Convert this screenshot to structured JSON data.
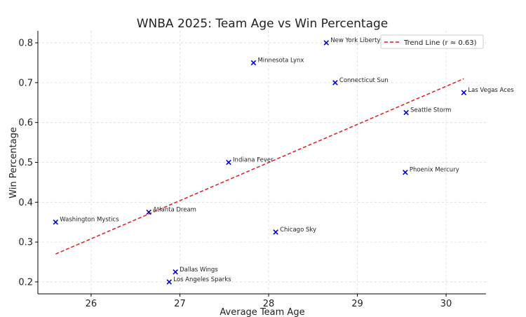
{
  "chart_data": {
    "type": "scatter",
    "title": "WNBA 2025: Team Age vs Win Percentage",
    "xlabel": "Average Team Age",
    "ylabel": "Win Percentage",
    "xlim": [
      25.4,
      30.45
    ],
    "ylim": [
      0.17,
      0.83
    ],
    "xticks": [
      26,
      27,
      28,
      29,
      30
    ],
    "yticks": [
      0.2,
      0.3,
      0.4,
      0.5,
      0.6,
      0.7,
      0.8
    ],
    "xtick_labels": [
      "26",
      "27",
      "28",
      "29",
      "30"
    ],
    "ytick_labels": [
      "0.2",
      "0.3",
      "0.4",
      "0.5",
      "0.6",
      "0.7",
      "0.8"
    ],
    "grid": true,
    "legend_position": "top-right",
    "points": [
      {
        "team": "New York Liberty",
        "x": 28.65,
        "y": 0.8
      },
      {
        "team": "Minnesota Lynx",
        "x": 27.83,
        "y": 0.75
      },
      {
        "team": "Connecticut Sun",
        "x": 28.75,
        "y": 0.7
      },
      {
        "team": "Las Vegas Aces",
        "x": 30.2,
        "y": 0.675
      },
      {
        "team": "Seattle Storm",
        "x": 29.55,
        "y": 0.625
      },
      {
        "team": "Indiana Fever",
        "x": 27.55,
        "y": 0.5
      },
      {
        "team": "Phoenix Mercury",
        "x": 29.54,
        "y": 0.475
      },
      {
        "team": "Atlanta Dream",
        "x": 26.65,
        "y": 0.375
      },
      {
        "team": "Washington Mystics",
        "x": 25.6,
        "y": 0.35
      },
      {
        "team": "Chicago Sky",
        "x": 28.08,
        "y": 0.325
      },
      {
        "team": "Dallas Wings",
        "x": 26.95,
        "y": 0.225
      },
      {
        "team": "Los Angeles Sparks",
        "x": 26.88,
        "y": 0.2
      }
    ],
    "trend_line": {
      "label": "Trend Line (r ≈ 0.63)",
      "x": [
        25.6,
        30.2
      ],
      "y": [
        0.27,
        0.71
      ]
    },
    "colors": {
      "points": "#0000cc",
      "trend": "#e31a1c"
    }
  }
}
